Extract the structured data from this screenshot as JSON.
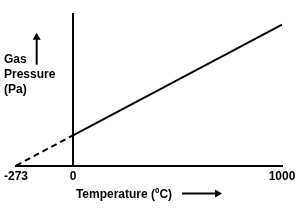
{
  "chart_data": {
    "type": "line",
    "xlabel": "Temperature (ºC)",
    "ylabel": "Gas Pressure (Pa)",
    "x": [
      -273,
      0,
      1000
    ],
    "series": [
      {
        "values": [
          0,
          20,
          null
        ],
        "color": "#000000",
        "line_style": "dashed"
      },
      {
        "values": [
          null,
          20,
          93
        ],
        "color": "#000000",
        "line_style": "solid"
      }
    ],
    "xlim": [
      -273,
      1000
    ],
    "xticks": [
      -273,
      0,
      1000
    ],
    "ylim": [
      0,
      100
    ],
    "grid": false,
    "tick_labels": "x"
  }
}
